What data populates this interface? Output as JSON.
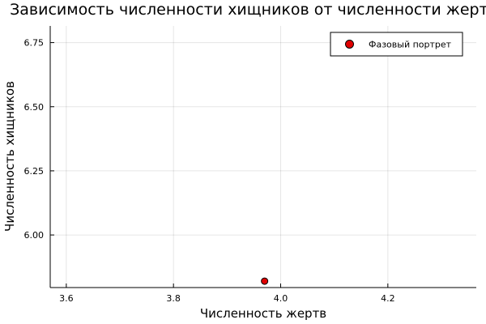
{
  "chart_data": {
    "type": "scatter",
    "title": "Зависимость численности хищников от численности жертв",
    "xlabel": "Численность жертв",
    "ylabel": "Численность хищников",
    "xlim": [
      3.57,
      4.365
    ],
    "ylim": [
      5.795,
      6.815
    ],
    "xticks": [
      3.6,
      3.8,
      4.0,
      4.2
    ],
    "xtick_labels": [
      "3.6",
      "3.8",
      "4.0",
      "4.2"
    ],
    "yticks": [
      6.0,
      6.25,
      6.5,
      6.75
    ],
    "ytick_labels": [
      "6.00",
      "6.25",
      "6.50",
      "6.75"
    ],
    "grid": true,
    "legend_position": "top-right",
    "series": [
      {
        "name": "Фазовый портрет",
        "color": "#e00000",
        "marker": "circle",
        "points": [
          {
            "x": 3.97,
            "y": 5.82
          }
        ]
      }
    ]
  }
}
